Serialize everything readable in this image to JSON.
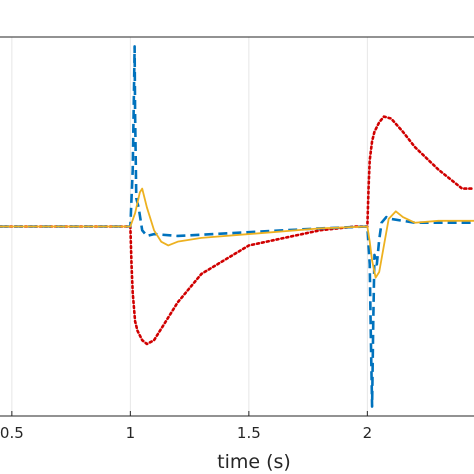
{
  "chart_data": {
    "type": "line",
    "xlabel": "time (s)",
    "ylabel": "",
    "title": "",
    "xlim": [
      0.45,
      2.45
    ],
    "ylim": [
      -1.0,
      1.0
    ],
    "xticks": [
      0.5,
      1,
      1.5,
      2
    ],
    "xtick_labels": [
      "0.5",
      "1",
      "1.5",
      "2"
    ],
    "grid": true,
    "legend": "none",
    "series": [
      {
        "color": "#EDB120",
        "linestyle": "solid",
        "x": [
          0.45,
          1.0,
          1.02,
          1.04,
          1.05,
          1.07,
          1.1,
          1.13,
          1.16,
          1.2,
          1.3,
          1.5,
          1.8,
          2.0,
          2.01,
          2.02,
          2.035,
          2.05,
          2.07,
          2.09,
          2.12,
          2.15,
          2.2,
          2.3,
          2.45
        ],
        "y": [
          0.0,
          0.0,
          0.07,
          0.18,
          0.2,
          0.1,
          -0.02,
          -0.08,
          -0.1,
          -0.08,
          -0.06,
          -0.04,
          -0.01,
          0.0,
          -0.08,
          -0.18,
          -0.27,
          -0.24,
          -0.1,
          0.04,
          0.08,
          0.05,
          0.02,
          0.03,
          0.03
        ]
      },
      {
        "color": "#0072BD",
        "linestyle": "dashed",
        "x": [
          0.45,
          1.0,
          1.01,
          1.015,
          1.018,
          1.02,
          1.025,
          1.035,
          1.05,
          1.07,
          1.1,
          1.2,
          1.5,
          1.8,
          2.0,
          2.01,
          2.015,
          2.02,
          2.025,
          2.03,
          2.04,
          2.05,
          2.06,
          2.08,
          2.1,
          2.2,
          2.45
        ],
        "y": [
          0.0,
          0.0,
          0.3,
          0.7,
          0.95,
          0.6,
          0.15,
          0.1,
          -0.02,
          -0.05,
          -0.04,
          -0.05,
          -0.03,
          -0.01,
          0.0,
          -0.2,
          -0.6,
          -0.95,
          -0.5,
          -0.15,
          -0.2,
          -0.07,
          0.02,
          0.05,
          0.04,
          0.02,
          0.02
        ]
      },
      {
        "color": "#D00000",
        "linestyle": "dotted",
        "x": [
          0.45,
          1.0,
          1.005,
          1.01,
          1.02,
          1.03,
          1.05,
          1.07,
          1.1,
          1.15,
          1.2,
          1.3,
          1.5,
          1.8,
          1.95,
          2.0,
          2.005,
          2.01,
          2.02,
          2.03,
          2.05,
          2.07,
          2.1,
          2.15,
          2.2,
          2.3,
          2.4,
          2.45
        ],
        "y": [
          0.0,
          0.0,
          -0.2,
          -0.35,
          -0.5,
          -0.55,
          -0.6,
          -0.62,
          -0.6,
          -0.5,
          -0.4,
          -0.25,
          -0.1,
          -0.02,
          0.0,
          0.0,
          0.2,
          0.35,
          0.45,
          0.5,
          0.55,
          0.58,
          0.57,
          0.5,
          0.42,
          0.3,
          0.2,
          0.2
        ]
      }
    ]
  }
}
